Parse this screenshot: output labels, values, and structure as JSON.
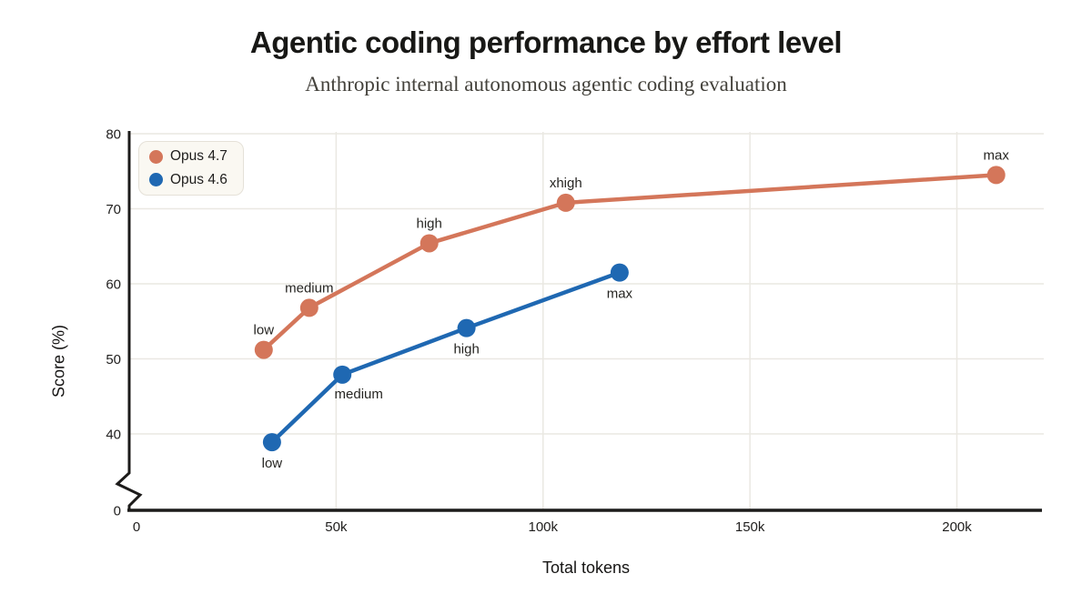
{
  "chart_data": {
    "type": "line",
    "title": "Agentic coding performance by effort level",
    "subtitle": "Anthropic internal autonomous agentic coding evaluation",
    "xlabel": "Total tokens",
    "ylabel": "Score (%)",
    "x_axis": {
      "unit": "tokens",
      "max_shown": 221000,
      "ticks": [
        {
          "value": 0,
          "label": "0"
        },
        {
          "value": 50000,
          "label": "50k"
        },
        {
          "value": 100000,
          "label": "100k"
        },
        {
          "value": 150000,
          "label": "150k"
        },
        {
          "value": 200000,
          "label": "200k"
        }
      ]
    },
    "y_axis": {
      "unit": "percent",
      "ticks": [
        {
          "value": 0,
          "label": "0"
        },
        {
          "value": 40,
          "label": "40"
        },
        {
          "value": 50,
          "label": "50"
        },
        {
          "value": 60,
          "label": "60"
        },
        {
          "value": 70,
          "label": "70"
        },
        {
          "value": 80,
          "label": "80"
        }
      ],
      "axis_break_between": [
        0,
        40
      ],
      "range_shown": [
        40,
        80
      ]
    },
    "grid": true,
    "legend_position": "top-left",
    "series": [
      {
        "name": "Opus 4.7",
        "color": "#d4765a",
        "points": [
          {
            "label": "low",
            "tokens": 32500,
            "score": 51.2,
            "label_pos": "above"
          },
          {
            "label": "medium",
            "tokens": 43500,
            "score": 56.8,
            "label_pos": "above"
          },
          {
            "label": "high",
            "tokens": 72500,
            "score": 65.4,
            "label_pos": "above"
          },
          {
            "label": "xhigh",
            "tokens": 105500,
            "score": 70.8,
            "label_pos": "above"
          },
          {
            "label": "max",
            "tokens": 209500,
            "score": 74.5,
            "label_pos": "above"
          }
        ]
      },
      {
        "name": "Opus 4.6",
        "color": "#1f68b2",
        "points": [
          {
            "label": "low",
            "tokens": 34500,
            "score": 38.9,
            "label_pos": "below"
          },
          {
            "label": "medium",
            "tokens": 51500,
            "score": 47.9,
            "label_pos": "below-right"
          },
          {
            "label": "high",
            "tokens": 81500,
            "score": 54.1,
            "label_pos": "below"
          },
          {
            "label": "max",
            "tokens": 118500,
            "score": 61.5,
            "label_pos": "below"
          }
        ]
      }
    ],
    "colors": {
      "background": "#ffffff",
      "grid": "#eae8e2",
      "axis": "#1c1b1a",
      "tick_text": "#1f1e1d",
      "point_label_text": "#262522",
      "legend_bg": "#faf8f2",
      "legend_border": "#e5e1d8"
    }
  }
}
